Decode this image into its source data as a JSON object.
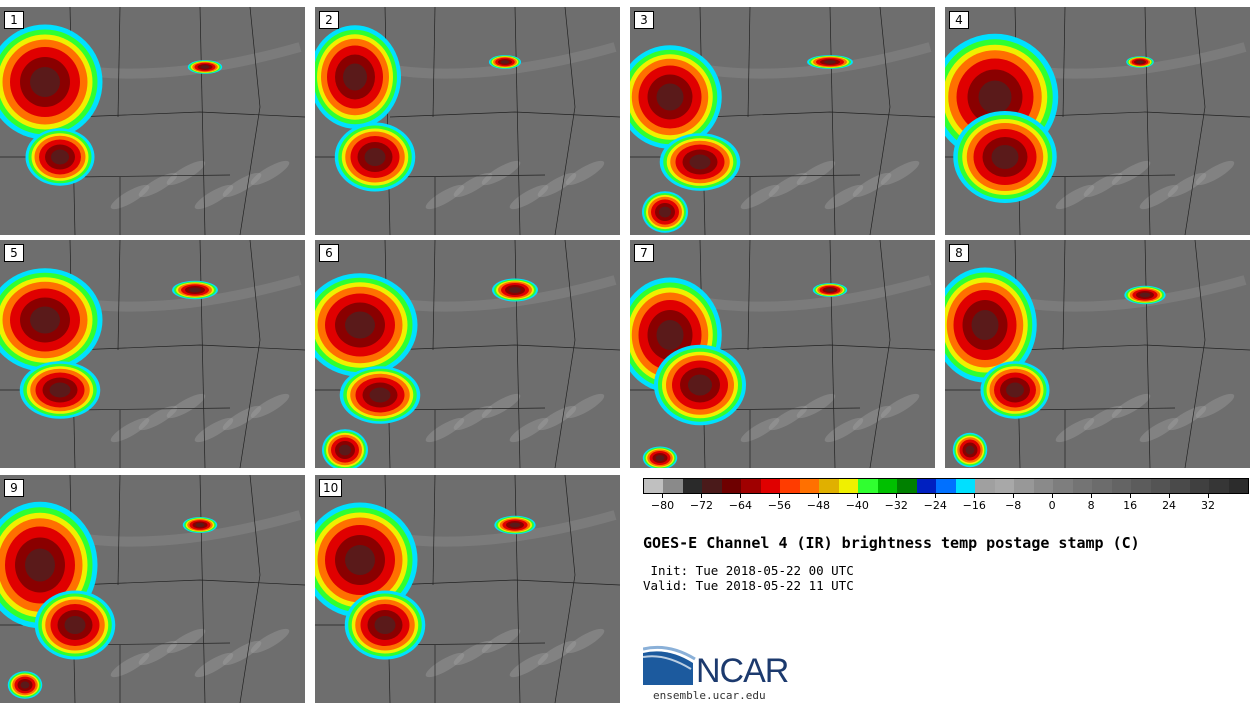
{
  "panels": [
    {
      "label": "1"
    },
    {
      "label": "2"
    },
    {
      "label": "3"
    },
    {
      "label": "4"
    },
    {
      "label": "5"
    },
    {
      "label": "6"
    },
    {
      "label": "7"
    },
    {
      "label": "8"
    },
    {
      "label": "9"
    },
    {
      "label": "10"
    }
  ],
  "colorbar": {
    "colors": [
      "#c0c0c0",
      "#8a8a8a",
      "#2a2a2a",
      "#4a1a1a",
      "#6e0000",
      "#a00000",
      "#e00000",
      "#ff3c00",
      "#ff7000",
      "#e0b000",
      "#f0f000",
      "#30ff30",
      "#00c000",
      "#008000",
      "#0020c0",
      "#0070ff",
      "#00e0ff",
      "#a0a0a0",
      "#a8a8a8",
      "#989898",
      "#8a8a8a",
      "#7e7e7e",
      "#747474",
      "#6c6c6c",
      "#646464",
      "#5c5c5c",
      "#545454",
      "#4a4a4a",
      "#404040",
      "#363636",
      "#2c2c2c"
    ],
    "tick_labels": [
      "−80",
      "−72",
      "−64",
      "−56",
      "−48",
      "−40",
      "−32",
      "−24",
      "−16",
      "−8",
      "0",
      "8",
      "16",
      "24",
      "32"
    ]
  },
  "title": "GOES-E Channel 4 (IR) brightness temp postage stamp (C)",
  "init_line": " Init: Tue 2018-05-22 00 UTC",
  "valid_line": "Valid: Tue 2018-05-22 11 UTC",
  "logo_text": "NCAR",
  "site": "ensemble.ucar.edu"
}
